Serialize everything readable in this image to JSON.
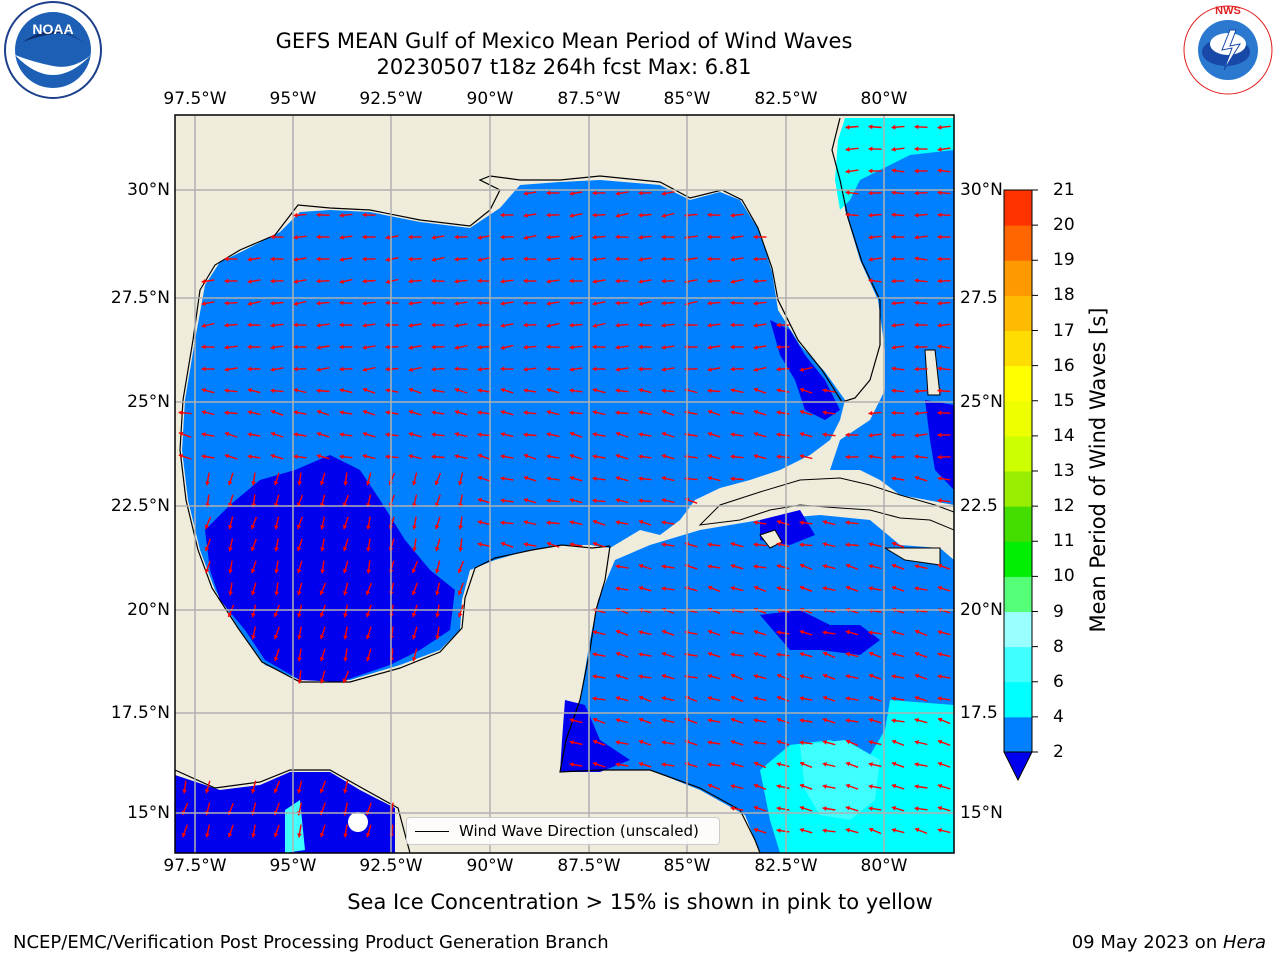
{
  "title": {
    "line1": "GEFS MEAN Gulf of Mexico Mean Period of Wind Waves",
    "line2": "20230507 t18z 264h fcst   Max: 6.81"
  },
  "logos": {
    "noaa": "NOAA",
    "nws": "NATIONAL WEATHER SERVICE"
  },
  "map": {
    "region": "Gulf of Mexico",
    "lon_range": [
      -98.5,
      -78.5
    ],
    "lat_range": [
      14,
      32
    ],
    "longitude_ticks": [
      "97.5°W",
      "95°W",
      "92.5°W",
      "90°W",
      "87.5°W",
      "85°W",
      "82.5°W",
      "80°W"
    ],
    "latitude_ticks_left": [
      "30°N",
      "27.5°N",
      "25°N",
      "22.5°N",
      "20°N",
      "17.5°N",
      "15°N"
    ],
    "latitude_ticks_right": [
      "30°N",
      "27.5",
      "25°N",
      "22.5",
      "20°N",
      "17.5",
      "15°N"
    ],
    "colors": {
      "land": "#efecdc",
      "period_2_4": "#0080ff",
      "period_below_2": "#0000ee",
      "period_4_6": "#00ffff",
      "period_6_8": "#40ffff",
      "arrow": "#ff0000",
      "grid": "#b0b0b0"
    },
    "legend_label": "Wind Wave Direction (unscaled)"
  },
  "colorbar": {
    "label": "Mean Period of Wind Waves [s]",
    "ticks": [
      "2",
      "4",
      "6",
      "8",
      "9",
      "10",
      "11",
      "12",
      "13",
      "14",
      "15",
      "16",
      "17",
      "18",
      "19",
      "20",
      "21"
    ],
    "colors": [
      "#0080ff",
      "#00ffff",
      "#40ffff",
      "#99ffff",
      "#55ff77",
      "#00ee00",
      "#44dd00",
      "#99ee00",
      "#ccff00",
      "#eeff00",
      "#ffff00",
      "#ffdd00",
      "#ffbb00",
      "#ff9900",
      "#ff6600",
      "#ff3300",
      "#ff0000"
    ],
    "under_color": "#0000ee"
  },
  "sea_ice_note": "Sea Ice Concentration > 15% is shown in pink to yellow",
  "footer": {
    "left": "NCEP/EMC/Verification Post Processing Product Generation Branch",
    "right_date": "09 May 2023 on ",
    "right_host": "Hera"
  }
}
